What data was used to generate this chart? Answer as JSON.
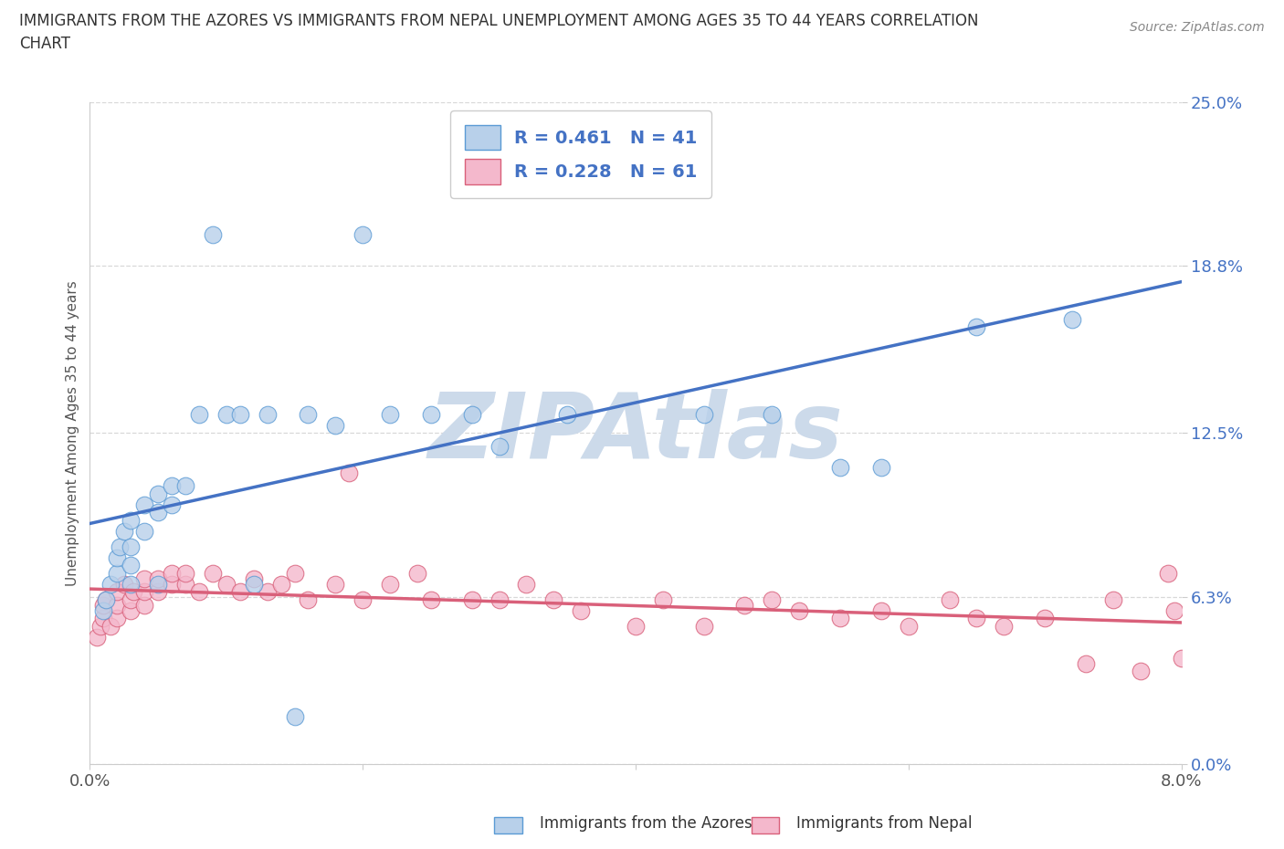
{
  "title_line1": "IMMIGRANTS FROM THE AZORES VS IMMIGRANTS FROM NEPAL UNEMPLOYMENT AMONG AGES 35 TO 44 YEARS CORRELATION",
  "title_line2": "CHART",
  "source": "Source: ZipAtlas.com",
  "ylabel": "Unemployment Among Ages 35 to 44 years",
  "xlabel_azores": "Immigrants from the Azores",
  "xlabel_nepal": "Immigrants from Nepal",
  "xlim": [
    0.0,
    0.08
  ],
  "ylim": [
    0.0,
    0.25
  ],
  "ytick_vals": [
    0.0,
    0.063,
    0.125,
    0.188,
    0.25
  ],
  "ytick_labels": [
    "0.0%",
    "6.3%",
    "12.5%",
    "18.8%",
    "25.0%"
  ],
  "xtick_vals": [
    0.0,
    0.02,
    0.04,
    0.06,
    0.08
  ],
  "xtick_labels": [
    "0.0%",
    "",
    "",
    "",
    "8.0%"
  ],
  "azores_scatter_color": "#b8d0ea",
  "azores_edge_color": "#5b9bd5",
  "nepal_scatter_color": "#f4b8cc",
  "nepal_edge_color": "#d9607a",
  "azores_line_color": "#4472c4",
  "nepal_line_color": "#d9607a",
  "R_azores": 0.461,
  "N_azores": 41,
  "R_nepal": 0.228,
  "N_nepal": 61,
  "azores_x": [
    0.001,
    0.0012,
    0.0015,
    0.002,
    0.002,
    0.0022,
    0.0025,
    0.003,
    0.003,
    0.003,
    0.003,
    0.004,
    0.004,
    0.005,
    0.005,
    0.005,
    0.006,
    0.006,
    0.007,
    0.008,
    0.009,
    0.01,
    0.011,
    0.012,
    0.013,
    0.015,
    0.016,
    0.018,
    0.02,
    0.022,
    0.025,
    0.028,
    0.03,
    0.035,
    0.04,
    0.045,
    0.05,
    0.055,
    0.058,
    0.065,
    0.072
  ],
  "azores_y": [
    0.058,
    0.062,
    0.068,
    0.072,
    0.078,
    0.082,
    0.088,
    0.068,
    0.075,
    0.082,
    0.092,
    0.088,
    0.098,
    0.095,
    0.102,
    0.068,
    0.098,
    0.105,
    0.105,
    0.132,
    0.2,
    0.132,
    0.132,
    0.068,
    0.132,
    0.018,
    0.132,
    0.128,
    0.2,
    0.132,
    0.132,
    0.132,
    0.12,
    0.132,
    0.222,
    0.132,
    0.132,
    0.112,
    0.112,
    0.165,
    0.168
  ],
  "nepal_x": [
    0.0005,
    0.0008,
    0.001,
    0.001,
    0.0012,
    0.0015,
    0.002,
    0.002,
    0.002,
    0.0025,
    0.003,
    0.003,
    0.0032,
    0.004,
    0.004,
    0.004,
    0.005,
    0.005,
    0.006,
    0.006,
    0.007,
    0.007,
    0.008,
    0.009,
    0.01,
    0.011,
    0.012,
    0.013,
    0.014,
    0.015,
    0.016,
    0.018,
    0.019,
    0.02,
    0.022,
    0.024,
    0.025,
    0.028,
    0.03,
    0.032,
    0.034,
    0.036,
    0.04,
    0.042,
    0.045,
    0.048,
    0.05,
    0.052,
    0.055,
    0.058,
    0.06,
    0.063,
    0.065,
    0.067,
    0.07,
    0.073,
    0.075,
    0.077,
    0.079,
    0.0795,
    0.08
  ],
  "nepal_y": [
    0.048,
    0.052,
    0.055,
    0.06,
    0.062,
    0.052,
    0.055,
    0.06,
    0.065,
    0.068,
    0.058,
    0.062,
    0.065,
    0.06,
    0.065,
    0.07,
    0.065,
    0.07,
    0.068,
    0.072,
    0.068,
    0.072,
    0.065,
    0.072,
    0.068,
    0.065,
    0.07,
    0.065,
    0.068,
    0.072,
    0.062,
    0.068,
    0.11,
    0.062,
    0.068,
    0.072,
    0.062,
    0.062,
    0.062,
    0.068,
    0.062,
    0.058,
    0.052,
    0.062,
    0.052,
    0.06,
    0.062,
    0.058,
    0.055,
    0.058,
    0.052,
    0.062,
    0.055,
    0.052,
    0.055,
    0.038,
    0.062,
    0.035,
    0.072,
    0.058,
    0.04
  ],
  "background_color": "#ffffff",
  "grid_color": "#d8d8d8",
  "watermark_text": "ZIPAtlas",
  "watermark_color": "#ccdaea"
}
